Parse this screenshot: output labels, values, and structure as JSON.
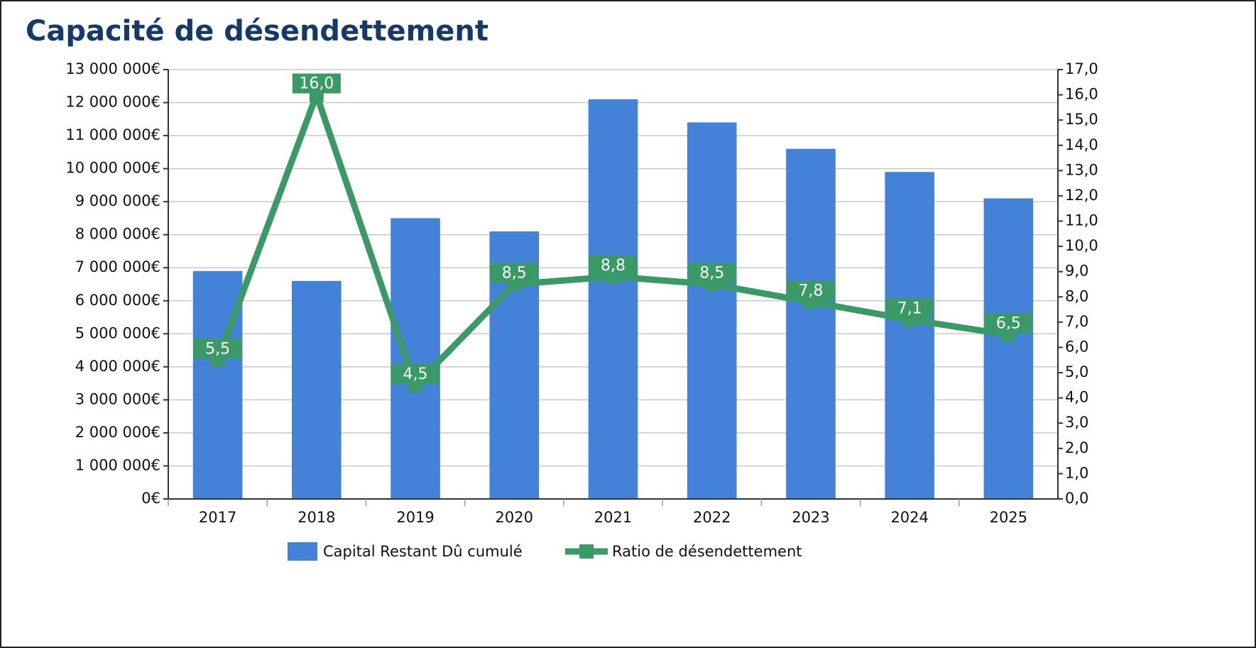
{
  "chart_data": {
    "type": "bar_line",
    "title": "Capacité de désendettement",
    "categories": [
      "2017",
      "2018",
      "2019",
      "2020",
      "2021",
      "2022",
      "2023",
      "2024",
      "2025"
    ],
    "series": [
      {
        "name": "Capital Restant Dû cumulé",
        "type": "bar",
        "color": "#4382d8",
        "values": [
          6900000,
          6600000,
          8500000,
          8100000,
          12100000,
          11400000,
          10600000,
          9900000,
          9100000
        ]
      },
      {
        "name": "Ratio de désendettement",
        "type": "line",
        "axis": "y2",
        "color": "#3a9a66",
        "values": [
          5.5,
          16.0,
          4.5,
          8.5,
          8.8,
          8.5,
          7.8,
          7.1,
          6.5
        ],
        "value_labels": [
          "5,5",
          "16,0",
          "4,5",
          "8,5",
          "8,8",
          "8,5",
          "7,8",
          "7,1",
          "6,5"
        ]
      }
    ],
    "ylim": [
      0,
      13000000
    ],
    "yticks": [
      {
        "value": 0,
        "label": "0€"
      },
      {
        "value": 1000000,
        "label": "1 000 000€"
      },
      {
        "value": 2000000,
        "label": "2 000 000€"
      },
      {
        "value": 3000000,
        "label": "3 000 000€"
      },
      {
        "value": 4000000,
        "label": "4 000 000€"
      },
      {
        "value": 5000000,
        "label": "5 000 000€"
      },
      {
        "value": 6000000,
        "label": "6 000 000€"
      },
      {
        "value": 7000000,
        "label": "7 000 000€"
      },
      {
        "value": 8000000,
        "label": "8 000 000€"
      },
      {
        "value": 9000000,
        "label": "9 000 000€"
      },
      {
        "value": 10000000,
        "label": "10 000 000€"
      },
      {
        "value": 11000000,
        "label": "11 000 000€"
      },
      {
        "value": 12000000,
        "label": "12 000 000€"
      },
      {
        "value": 13000000,
        "label": "13 000 000€"
      }
    ],
    "y2lim": [
      0,
      17
    ],
    "y2ticks": [
      {
        "value": 0,
        "label": "0,0"
      },
      {
        "value": 1,
        "label": "1,0"
      },
      {
        "value": 2,
        "label": "2,0"
      },
      {
        "value": 3,
        "label": "3,0"
      },
      {
        "value": 4,
        "label": "4,0"
      },
      {
        "value": 5,
        "label": "5,0"
      },
      {
        "value": 6,
        "label": "6,0"
      },
      {
        "value": 7,
        "label": "7,0"
      },
      {
        "value": 8,
        "label": "8,0"
      },
      {
        "value": 9,
        "label": "9,0"
      },
      {
        "value": 10,
        "label": "10,0"
      },
      {
        "value": 11,
        "label": "11,0"
      },
      {
        "value": 12,
        "label": "12,0"
      },
      {
        "value": 13,
        "label": "13,0"
      },
      {
        "value": 14,
        "label": "14,0"
      },
      {
        "value": 15,
        "label": "15,0"
      },
      {
        "value": 16,
        "label": "16,0"
      },
      {
        "value": 17,
        "label": "17,0"
      }
    ],
    "grid": true,
    "legend": "bottom"
  }
}
